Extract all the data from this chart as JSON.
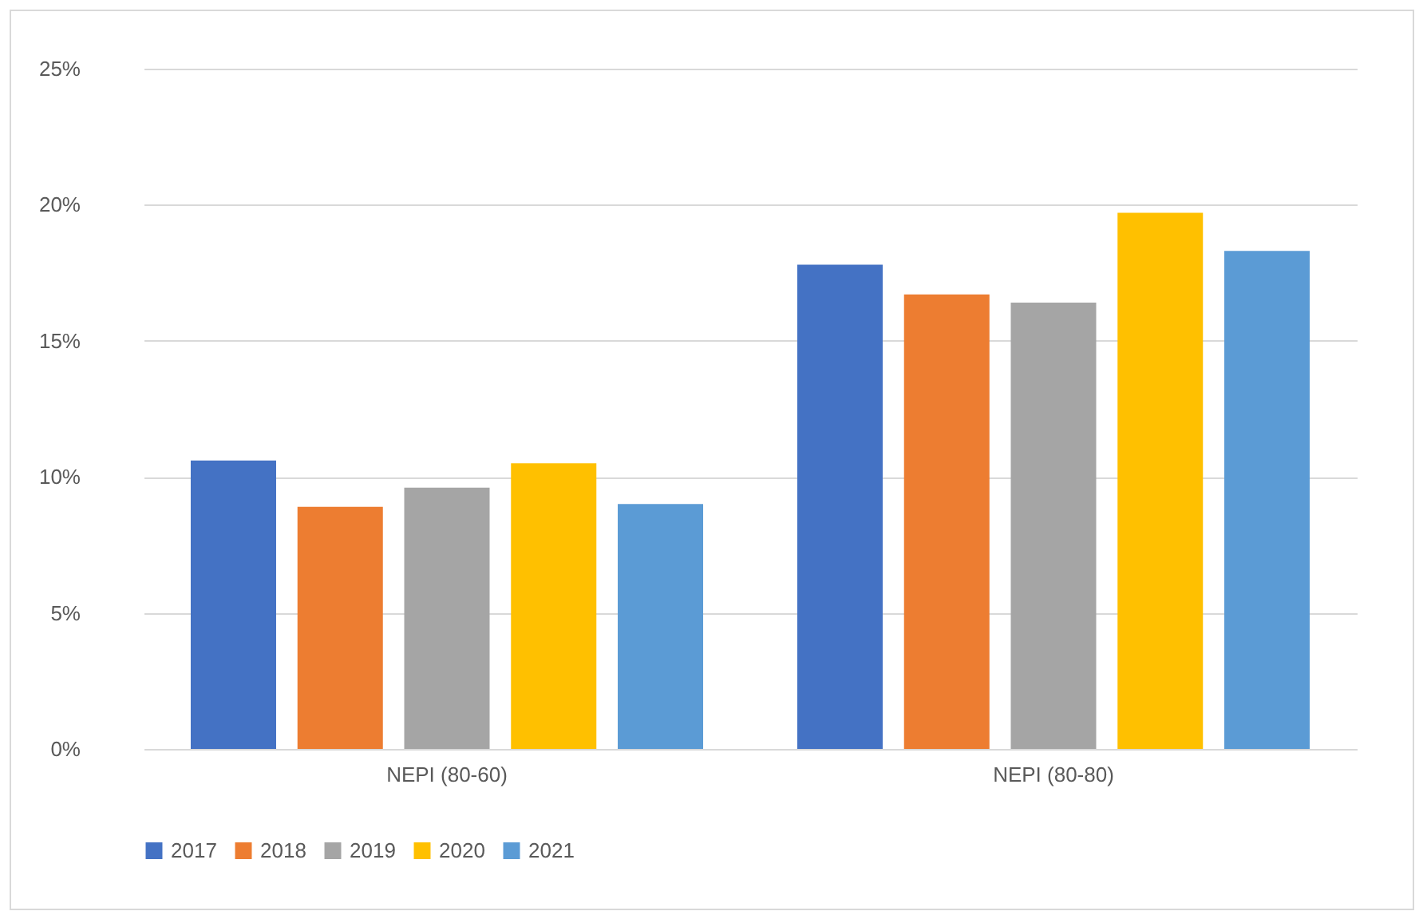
{
  "chart_data": {
    "type": "bar",
    "categories": [
      "NEPI (80-60)",
      "NEPI (80-80)"
    ],
    "series": [
      {
        "name": "2017",
        "color": "#4472c4",
        "values": [
          10.6,
          17.8
        ]
      },
      {
        "name": "2018",
        "color": "#ed7d31",
        "values": [
          8.9,
          16.7
        ]
      },
      {
        "name": "2019",
        "color": "#a5a5a5",
        "values": [
          9.6,
          16.4
        ]
      },
      {
        "name": "2020",
        "color": "#ffc000",
        "values": [
          10.5,
          19.7
        ]
      },
      {
        "name": "2021",
        "color": "#5b9bd5",
        "values": [
          9.0,
          18.3
        ]
      }
    ],
    "ylim": [
      0,
      25
    ],
    "yticks": [
      {
        "value": 0,
        "label": "0%"
      },
      {
        "value": 5,
        "label": "5%"
      },
      {
        "value": 10,
        "label": "10%"
      },
      {
        "value": 15,
        "label": "15%"
      },
      {
        "value": 20,
        "label": "20%"
      },
      {
        "value": 25,
        "label": "25%"
      }
    ],
    "grid": "y",
    "legend": "bottom"
  }
}
